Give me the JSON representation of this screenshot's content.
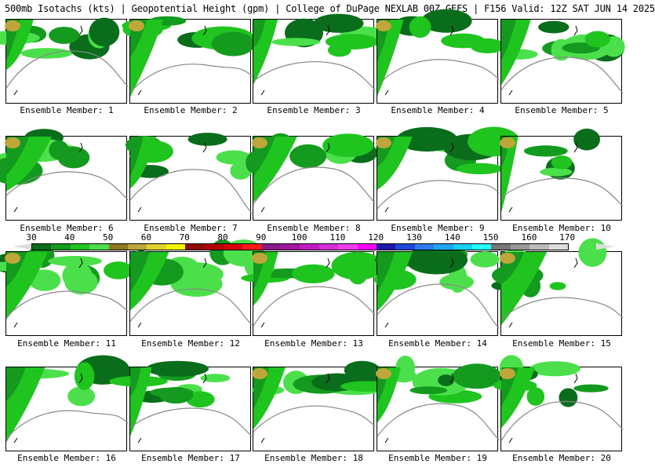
{
  "header": {
    "title": "500mb Isotachs (kts) | Geopotential Height (gpm) | College of DuPage NEXLAB   00Z GEFS | F156 Valid: 12Z SAT JUN 14 2025"
  },
  "legend": {
    "ticks": [
      "30",
      "40",
      "50",
      "60",
      "70",
      "80",
      "90",
      "100",
      "110",
      "120",
      "130",
      "140",
      "150",
      "160",
      "170"
    ],
    "colors": [
      "#0a6d1b",
      "#149a1e",
      "#1fc41f",
      "#4be04b",
      "#8e7a1e",
      "#bfa63a",
      "#e0d22b",
      "#f6f600",
      "#8f0a0a",
      "#b20000",
      "#d60000",
      "#ff1a1a",
      "#8b1a8b",
      "#a01aa0",
      "#c21ac2",
      "#d72ed7",
      "#ee3cee",
      "#ff00ff",
      "#1a1aa8",
      "#1f47d6",
      "#2b7aee",
      "#1ea8f0",
      "#16d0f5",
      "#22ffff",
      "#777777",
      "#999999",
      "#bbbbbb",
      "#dddddd"
    ]
  },
  "members": [
    "Ensemble Member: 1",
    "Ensemble Member: 2",
    "Ensemble Member: 3",
    "Ensemble Member: 4",
    "Ensemble Member: 5",
    "Ensemble Member: 6",
    "Ensemble Member: 7",
    "Ensemble Member: 8",
    "Ensemble Member: 9",
    "Ensemble Member: 10",
    "Ensemble Member: 11",
    "Ensemble Member: 12",
    "Ensemble Member: 13",
    "Ensemble Member: 14",
    "Ensemble Member: 15",
    "Ensemble Member: 16",
    "Ensemble Member: 17",
    "Ensemble Member: 18",
    "Ensemble Member: 19",
    "Ensemble Member: 20"
  ]
}
